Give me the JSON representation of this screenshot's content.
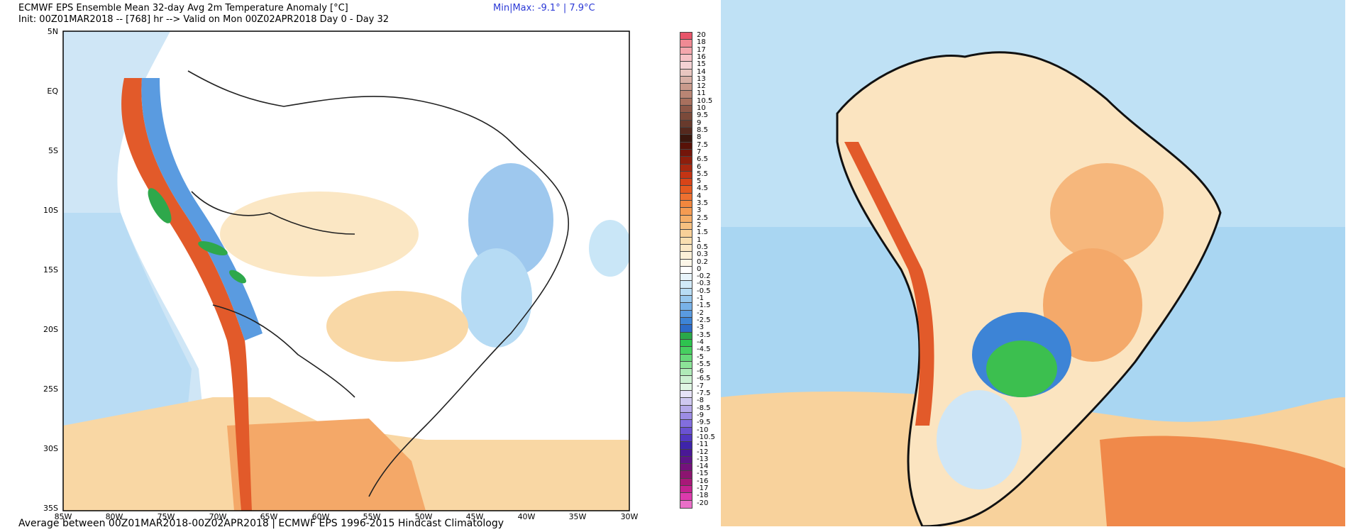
{
  "header": {
    "title": "ECMWF EPS Ensemble Mean 32-day Avg 2m Temperature Anomaly [°C]",
    "init_line": "Init: 00Z01MAR2018 -- [768] hr --> Valid on Mon 00Z02APR2018  Day 0 - Day 32",
    "minmax": "Min|Max: -9.1° | 7.9°C"
  },
  "footer": "Average between 00Z01MAR2018-00Z02APR2018 | ECMWF EPS 1996-2015 Hindcast Climatology",
  "axes": {
    "lat_labels": [
      "5N",
      "EQ",
      "5S",
      "10S",
      "15S",
      "20S",
      "25S",
      "30S",
      "35S"
    ],
    "lon_labels": [
      "85W",
      "80W",
      "75W",
      "70W",
      "65W",
      "60W",
      "55W",
      "50W",
      "45W",
      "40W",
      "35W",
      "30W"
    ]
  },
  "legend": {
    "labels": [
      "20",
      "18",
      "17",
      "16",
      "15",
      "14",
      "13",
      "12",
      "11",
      "10.5",
      "10",
      "9.5",
      "9",
      "8.5",
      "8",
      "7.5",
      "7",
      "6.5",
      "6",
      "5.5",
      "5",
      "4.5",
      "4",
      "3.5",
      "3",
      "2.5",
      "2",
      "1.5",
      "1",
      "0.5",
      "0.3",
      "0.2",
      "0",
      "-0.2",
      "-0.3",
      "-0.5",
      "-1",
      "-1.5",
      "-2",
      "-2.5",
      "-3",
      "-3.5",
      "-4",
      "-4.5",
      "-5",
      "-5.5",
      "-6",
      "-6.5",
      "-7",
      "-7.5",
      "-8",
      "-8.5",
      "-9",
      "-9.5",
      "-10",
      "-10.5",
      "-11",
      "-12",
      "-13",
      "-14",
      "-15",
      "-16",
      "-17",
      "-18",
      "-20"
    ],
    "colors": [
      "#e8556a",
      "#f08a94",
      "#f4a7ad",
      "#f6c2c6",
      "#f4d2d4",
      "#e8c6c0",
      "#d8b0a6",
      "#c99a8c",
      "#b98574",
      "#a8705e",
      "#8e5848",
      "#7b4a3a",
      "#683a2c",
      "#55291e",
      "#3b170e",
      "#581208",
      "#74150a",
      "#8e1e0c",
      "#a82810",
      "#c33414",
      "#d84418",
      "#e55a20",
      "#ee7030",
      "#f2873e",
      "#f59b52",
      "#f6ae68",
      "#f7c080",
      "#f8d098",
      "#f9deb0",
      "#fbe8c6",
      "#fcf0d8",
      "#fdf6e8",
      "#ffffff",
      "#e8f4fb",
      "#d2eaf8",
      "#b8dcf4",
      "#98c8ee",
      "#78b2e8",
      "#5a9be0",
      "#3d84d6",
      "#2d6cc8",
      "#2aa84a",
      "#2ec44f",
      "#46d060",
      "#66da7a",
      "#8ce398",
      "#b0ebb8",
      "#cdf1d2",
      "#e0f6e4",
      "#e6e2f6",
      "#cfc8f0",
      "#b6aaea",
      "#9c8ce4",
      "#826ede",
      "#6a52d2",
      "#5238c2",
      "#3e24aa",
      "#4a1896",
      "#5e1488",
      "#74127c",
      "#8c1470",
      "#a81878",
      "#c42290",
      "#dc3aac",
      "#ea6fc8"
    ]
  }
}
